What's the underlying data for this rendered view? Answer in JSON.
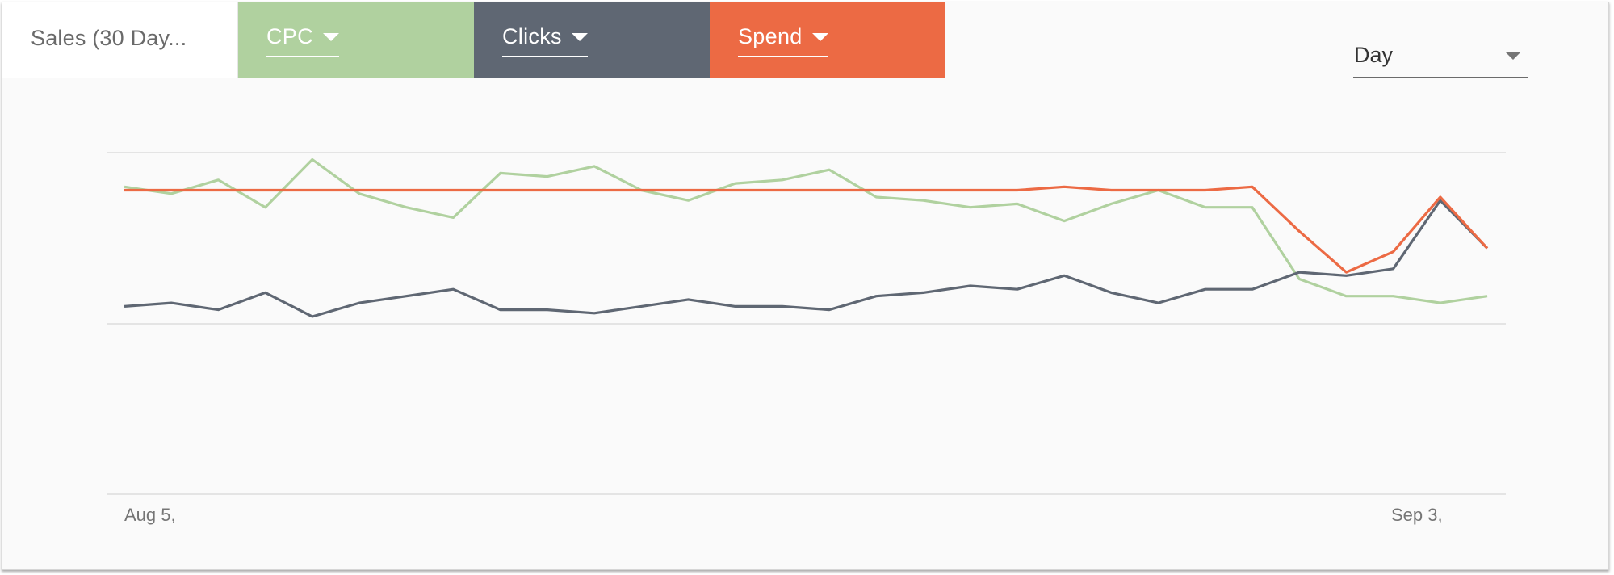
{
  "tabs": {
    "sales_label": "Sales (30 Day...",
    "metrics": [
      {
        "label": "CPC",
        "color": "#b0d19f"
      },
      {
        "label": "Clicks",
        "color": "#5f6773"
      },
      {
        "label": "Spend",
        "color": "#ec6a44"
      }
    ]
  },
  "period": {
    "label": "Day"
  },
  "chart_data": {
    "type": "line",
    "x_tick_labels": [
      "Aug 5,",
      "Sep 3,"
    ],
    "grid": true,
    "y_normalized_range": [
      0,
      100
    ],
    "series": [
      {
        "name": "CPC",
        "color": "#b0d19f",
        "values": [
          90,
          88,
          92,
          84,
          98,
          88,
          84,
          81,
          94,
          93,
          96,
          89,
          86,
          91,
          92,
          95,
          87,
          86,
          84,
          85,
          80,
          85,
          89,
          84,
          84,
          63,
          58,
          58,
          56,
          58
        ]
      },
      {
        "name": "Clicks",
        "color": "#5f6773",
        "values": [
          55,
          56,
          54,
          59,
          52,
          56,
          58,
          60,
          54,
          54,
          53,
          55,
          57,
          55,
          55,
          54,
          58,
          59,
          61,
          60,
          64,
          59,
          56,
          60,
          60,
          65,
          64,
          66,
          86,
          72
        ]
      },
      {
        "name": "Spend",
        "color": "#ec6a44",
        "values": [
          89,
          89,
          89,
          89,
          89,
          89,
          89,
          89,
          89,
          89,
          89,
          89,
          89,
          89,
          89,
          89,
          89,
          89,
          89,
          89,
          90,
          89,
          89,
          89,
          90,
          77,
          65,
          71,
          87,
          72
        ]
      }
    ]
  }
}
